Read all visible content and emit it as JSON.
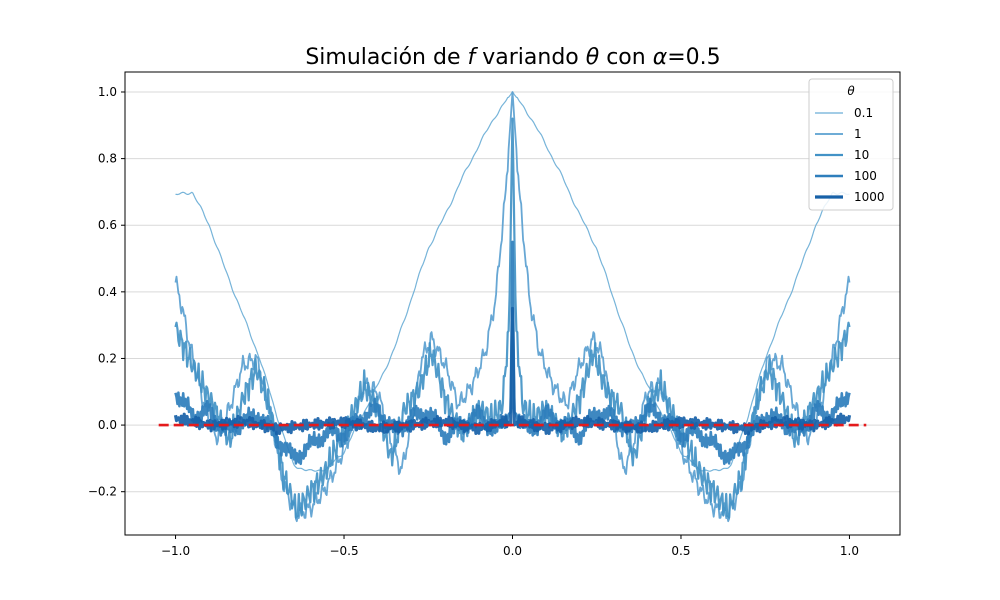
{
  "chart_data": {
    "type": "line",
    "title_parts": [
      "Simulación de ",
      "f",
      " variando ",
      "θ",
      " con ",
      "α",
      "=0.5"
    ],
    "xlabel": "",
    "ylabel": "",
    "xlim": [
      -1.15,
      1.15
    ],
    "ylim": [
      -0.33,
      1.06
    ],
    "x_ticks": [
      -1.0,
      -0.5,
      0.0,
      0.5,
      1.0
    ],
    "x_tick_labels": [
      "−1.0",
      "−0.5",
      "0.0",
      "0.5",
      "1.0"
    ],
    "y_ticks": [
      -0.2,
      0.0,
      0.2,
      0.4,
      0.6,
      0.8,
      1.0
    ],
    "y_tick_labels": [
      "−0.2",
      "0.0",
      "0.2",
      "0.4",
      "0.6",
      "0.8",
      "1.0"
    ],
    "grid": "horizontal",
    "legend": {
      "title": "θ",
      "placement": "top-right"
    },
    "reference_line": {
      "y": 0.0,
      "x_range": [
        -1.05,
        1.05
      ],
      "color": "#e41a1c",
      "style": "dashed"
    },
    "series": [
      {
        "name": "0.1",
        "color": "#6baed6",
        "x": [
          0.0,
          0.05,
          0.1,
          0.15,
          0.2,
          0.25,
          0.3,
          0.35,
          0.4,
          0.45,
          0.5,
          0.55,
          0.6,
          0.65,
          0.7,
          0.75,
          0.8,
          0.85,
          0.9,
          0.95,
          1.0
        ],
        "y": [
          1.0,
          0.93,
          0.84,
          0.74,
          0.63,
          0.53,
          0.38,
          0.23,
          0.12,
          0.02,
          -0.08,
          -0.13,
          -0.14,
          -0.12,
          0.03,
          0.2,
          0.33,
          0.46,
          0.6,
          0.7,
          0.69
        ]
      },
      {
        "name": "1",
        "color": "#5aa0d0",
        "x": [
          0.0,
          0.02,
          0.05,
          0.08,
          0.12,
          0.16,
          0.2,
          0.24,
          0.27,
          0.3,
          0.33,
          0.36,
          0.4,
          0.44,
          0.48,
          0.52,
          0.56,
          0.6,
          0.64,
          0.68,
          0.72,
          0.76,
          0.8,
          0.84,
          0.88,
          0.92,
          0.96,
          0.98,
          1.0
        ],
        "y": [
          1.0,
          0.7,
          0.38,
          0.22,
          0.12,
          0.06,
          0.18,
          0.26,
          0.2,
          0.0,
          -0.14,
          -0.05,
          0.1,
          0.12,
          -0.02,
          -0.12,
          -0.2,
          -0.25,
          -0.27,
          -0.18,
          0.05,
          0.2,
          0.18,
          0.05,
          -0.04,
          0.08,
          0.25,
          0.35,
          0.43
        ]
      },
      {
        "name": "10",
        "color": "#4292c6",
        "x": [
          0.0,
          0.01,
          0.03,
          0.06,
          0.1,
          0.15,
          0.2,
          0.24,
          0.28,
          0.32,
          0.36,
          0.4,
          0.44,
          0.48,
          0.52,
          0.56,
          0.6,
          0.64,
          0.68,
          0.72,
          0.76,
          0.8,
          0.84,
          0.88,
          0.92,
          0.96,
          1.0
        ],
        "y": [
          0.92,
          0.3,
          0.06,
          0.02,
          0.05,
          -0.03,
          0.08,
          0.22,
          0.1,
          0.05,
          -0.1,
          0.05,
          0.12,
          0.02,
          -0.06,
          -0.15,
          -0.2,
          -0.26,
          -0.15,
          0.05,
          0.17,
          0.08,
          -0.05,
          0.04,
          0.12,
          0.2,
          0.29
        ]
      },
      {
        "name": "100",
        "color": "#2e7ebc",
        "x": [
          0.0,
          0.005,
          0.02,
          0.05,
          0.1,
          0.15,
          0.2,
          0.25,
          0.3,
          0.35,
          0.4,
          0.45,
          0.5,
          0.55,
          0.6,
          0.65,
          0.7,
          0.75,
          0.8,
          0.85,
          0.9,
          0.95,
          1.0
        ],
        "y": [
          0.55,
          0.04,
          0.02,
          -0.02,
          0.03,
          0.0,
          -0.03,
          0.04,
          0.02,
          -0.02,
          0.05,
          0.02,
          -0.03,
          -0.02,
          -0.06,
          -0.1,
          -0.04,
          0.03,
          0.01,
          -0.02,
          0.04,
          0.03,
          0.1
        ]
      },
      {
        "name": "1000",
        "color": "#1761a8",
        "x": [
          0.0,
          0.005,
          0.02,
          0.1,
          0.2,
          0.3,
          0.4,
          0.5,
          0.6,
          0.7,
          0.8,
          0.9,
          1.0
        ],
        "y": [
          0.35,
          0.0,
          0.01,
          -0.01,
          0.01,
          0.0,
          -0.01,
          0.01,
          0.0,
          -0.01,
          0.01,
          0.0,
          0.02
        ]
      }
    ]
  }
}
